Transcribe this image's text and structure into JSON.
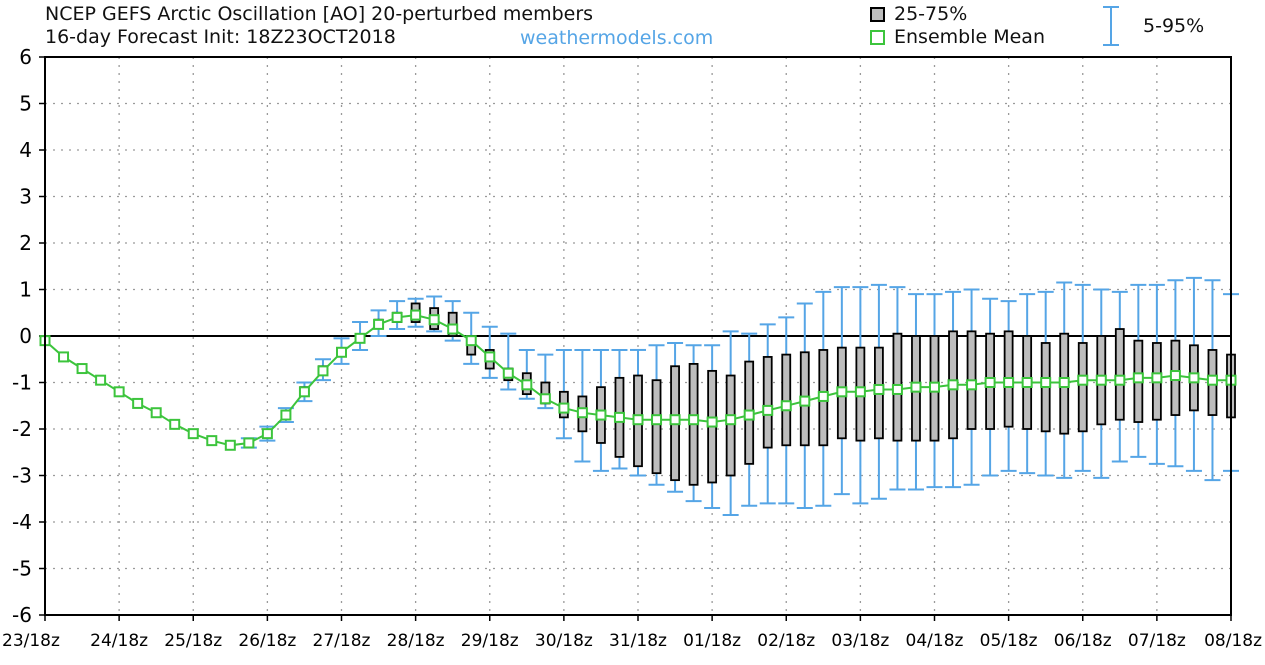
{
  "header": {
    "title_line1": "NCEP GEFS Arctic Oscillation [AO]  20-perturbed members",
    "title_line2": "16-day Forecast Init: 18Z23OCT2018",
    "source": "weathermodels.com"
  },
  "legend": {
    "box_label": "25-75%",
    "mean_label": "Ensemble Mean",
    "whisker_label": "5-95%"
  },
  "colors": {
    "box_fill": "#bdbdbd",
    "mean": "#3cc43c",
    "whisker": "#55a5e6",
    "zero_line": "#000000",
    "grid": "#9a9a9a"
  },
  "chart_data": {
    "type": "box",
    "title": "NCEP GEFS Arctic Oscillation [AO]  20-perturbed members",
    "subtitle": "16-day Forecast Init: 18Z23OCT2018",
    "xlabel": "",
    "ylabel": "",
    "ylim": [
      -6,
      6
    ],
    "yticks": [
      6,
      5,
      4,
      3,
      2,
      1,
      0,
      -1,
      -2,
      -3,
      -4,
      -5,
      -6
    ],
    "x_tick_labels": [
      "23/18z",
      "24/18z",
      "25/18z",
      "26/18z",
      "27/18z",
      "28/18z",
      "29/18z",
      "30/18z",
      "31/18z",
      "01/18z",
      "02/18z",
      "03/18z",
      "04/18z",
      "05/18z",
      "06/18z",
      "07/18z",
      "08/18z"
    ],
    "x_unit": "forecast step (4 per day, 6-hourly)",
    "grid": "dotted",
    "legend_position": "top-right",
    "series": [
      {
        "name": "Ensemble Mean",
        "values": [
          -0.1,
          -0.45,
          -0.7,
          -0.95,
          -1.2,
          -1.45,
          -1.65,
          -1.9,
          -2.1,
          -2.25,
          -2.35,
          -2.3,
          -2.1,
          -1.7,
          -1.2,
          -0.75,
          -0.35,
          -0.05,
          0.25,
          0.4,
          0.45,
          0.35,
          0.15,
          -0.1,
          -0.45,
          -0.8,
          -1.05,
          -1.35,
          -1.55,
          -1.65,
          -1.7,
          -1.75,
          -1.8,
          -1.8,
          -1.8,
          -1.8,
          -1.85,
          -1.8,
          -1.7,
          -1.6,
          -1.5,
          -1.4,
          -1.3,
          -1.2,
          -1.2,
          -1.15,
          -1.15,
          -1.1,
          -1.1,
          -1.05,
          -1.05,
          -1.0,
          -1.0,
          -1.0,
          -1.0,
          -1.0,
          -0.95,
          -0.95,
          -0.95,
          -0.9,
          -0.9,
          -0.85,
          -0.9,
          -0.95,
          -0.95
        ]
      },
      {
        "name": "25-75%",
        "q1": [
          -0.1,
          -0.45,
          -0.7,
          -0.95,
          -1.2,
          -1.45,
          -1.65,
          -1.9,
          -2.1,
          -2.25,
          -2.35,
          -2.3,
          -2.1,
          -1.7,
          -1.25,
          -0.8,
          -0.4,
          -0.1,
          0.2,
          0.3,
          0.3,
          0.15,
          0.0,
          -0.4,
          -0.7,
          -0.95,
          -1.25,
          -1.45,
          -1.75,
          -2.05,
          -2.3,
          -2.6,
          -2.8,
          -2.95,
          -3.1,
          -3.2,
          -3.15,
          -3.0,
          -2.75,
          -2.4,
          -2.35,
          -2.35,
          -2.35,
          -2.2,
          -2.25,
          -2.2,
          -2.25,
          -2.25,
          -2.25,
          -2.2,
          -2.0,
          -2.0,
          -1.95,
          -2.0,
          -2.05,
          -2.1,
          -2.05,
          -1.9,
          -1.8,
          -1.85,
          -1.8,
          -1.7,
          -1.6,
          -1.7,
          -1.75
        ],
        "q3": [
          -0.1,
          -0.45,
          -0.7,
          -0.95,
          -1.2,
          -1.45,
          -1.65,
          -1.9,
          -2.1,
          -2.25,
          -2.35,
          -2.3,
          -2.1,
          -1.7,
          -1.1,
          -0.65,
          -0.3,
          0.0,
          0.35,
          0.5,
          0.7,
          0.6,
          0.5,
          0.0,
          -0.3,
          -0.7,
          -0.8,
          -1.0,
          -1.2,
          -1.3,
          -1.1,
          -0.9,
          -0.85,
          -0.95,
          -0.65,
          -0.6,
          -0.75,
          -0.85,
          -0.55,
          -0.45,
          -0.4,
          -0.35,
          -0.3,
          -0.25,
          -0.25,
          -0.25,
          0.05,
          0.0,
          0.0,
          0.1,
          0.1,
          0.05,
          0.1,
          0.0,
          -0.15,
          0.05,
          -0.15,
          0.0,
          0.15,
          -0.1,
          -0.15,
          -0.1,
          -0.2,
          -0.3,
          -0.4
        ],
        "p5": [
          -0.1,
          -0.45,
          -0.7,
          -0.95,
          -1.2,
          -1.45,
          -1.65,
          -1.9,
          -2.1,
          -2.3,
          -2.4,
          -2.4,
          -2.25,
          -1.85,
          -1.4,
          -0.95,
          -0.6,
          -0.3,
          0.0,
          0.15,
          0.2,
          0.1,
          -0.1,
          -0.6,
          -0.9,
          -1.15,
          -1.35,
          -1.55,
          -2.2,
          -2.7,
          -2.9,
          -2.85,
          -3.0,
          -3.2,
          -3.35,
          -3.55,
          -3.7,
          -3.85,
          -3.65,
          -3.6,
          -3.6,
          -3.7,
          -3.65,
          -3.4,
          -3.6,
          -3.5,
          -3.3,
          -3.3,
          -3.25,
          -3.25,
          -3.2,
          -3.0,
          -2.9,
          -2.95,
          -3.0,
          -3.05,
          -2.9,
          -3.05,
          -2.7,
          -2.6,
          -2.75,
          -2.8,
          -2.9,
          -3.1,
          -2.9
        ],
        "p95": [
          -0.1,
          -0.45,
          -0.7,
          -0.95,
          -1.2,
          -1.45,
          -1.65,
          -1.9,
          -2.1,
          -2.2,
          -2.3,
          -2.2,
          -1.95,
          -1.55,
          -1.0,
          -0.5,
          -0.05,
          0.3,
          0.55,
          0.75,
          0.8,
          0.85,
          0.75,
          0.5,
          0.2,
          0.05,
          -0.3,
          -0.4,
          -0.3,
          -0.3,
          -0.3,
          -0.3,
          -0.3,
          -0.2,
          -0.15,
          -0.2,
          -0.2,
          0.1,
          0.05,
          0.25,
          0.4,
          0.7,
          0.95,
          1.05,
          1.05,
          1.1,
          1.05,
          0.9,
          0.9,
          0.95,
          1.0,
          0.8,
          0.75,
          0.9,
          0.95,
          1.15,
          1.1,
          1.0,
          0.95,
          1.1,
          1.1,
          1.2,
          1.25,
          1.2,
          0.9
        ]
      }
    ]
  }
}
